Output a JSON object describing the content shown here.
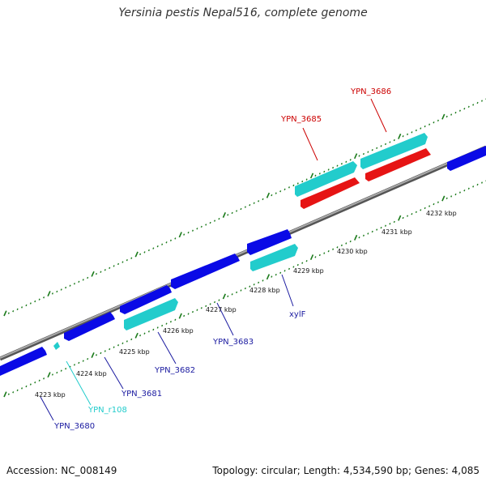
{
  "title": "Yersinia pestis Nepal516, complete genome",
  "footer": {
    "accession": "Accession: NC_008149",
    "summary": "Topology: circular; Length: 4,534,590 bp; Genes: 4,085"
  },
  "colors": {
    "forward_cds": "#0a0ae6",
    "reverse_cds": "#e61414",
    "rna": "#22cccc",
    "rna_label": "#22cccc",
    "backbone": "#888888",
    "tick": "#1a7a1a"
  },
  "scale_labels": [
    "4223 kbp",
    "4224 kbp",
    "4225 kbp",
    "4226 kbp",
    "4227 kbp",
    "4228 kbp",
    "4229 kbp",
    "4230 kbp",
    "4231 kbp",
    "4232 kbp"
  ],
  "gene_labels": [
    {
      "text": "YPN_3680",
      "color": "#1a1aa0"
    },
    {
      "text": "YPN_r108",
      "color": "#22cccc"
    },
    {
      "text": "YPN_3681",
      "color": "#1a1aa0"
    },
    {
      "text": "YPN_3682",
      "color": "#1a1aa0"
    },
    {
      "text": "YPN_3683",
      "color": "#1a1aa0"
    },
    {
      "text": "xylF",
      "color": "#1a1aa0"
    },
    {
      "text": "YPN_3685",
      "color": "#cc0000"
    },
    {
      "text": "YPN_3686",
      "color": "#cc0000"
    }
  ]
}
